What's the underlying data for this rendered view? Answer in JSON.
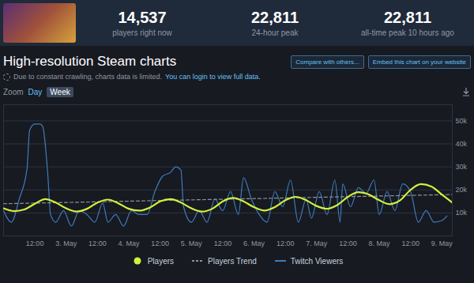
{
  "header": {
    "stats": [
      {
        "value": "14,537",
        "label": "players right now"
      },
      {
        "value": "22,811",
        "label": "24-hour peak"
      },
      {
        "value": "22,811",
        "label": "all-time peak 10 hours ago"
      }
    ]
  },
  "page": {
    "buttons": [
      "Compare with others...",
      "Embed this chart on your website"
    ],
    "notice": "Due to constant crawling, charts data is limited.",
    "notice_link": "You can login to view full data.",
    "zoom_label": "Zoom",
    "zoom_options": [
      "Day",
      "Week"
    ],
    "zoom_selected": "Week"
  },
  "chart_data": {
    "type": "line",
    "title": "High-resolution Steam charts",
    "xlim": [
      0,
      172
    ],
    "xticks": [
      {
        "value": 12,
        "label": "12:00"
      },
      {
        "value": 24,
        "label": "3. May"
      },
      {
        "value": 36,
        "label": "12:00"
      },
      {
        "value": 48,
        "label": "4. May"
      },
      {
        "value": 60,
        "label": "12:00"
      },
      {
        "value": 72,
        "label": "5. May"
      },
      {
        "value": 84,
        "label": "12:00"
      },
      {
        "value": 96,
        "label": "6. May"
      },
      {
        "value": 108,
        "label": "12:00"
      },
      {
        "value": 120,
        "label": "7. May"
      },
      {
        "value": 132,
        "label": "12:00"
      },
      {
        "value": 144,
        "label": "8. May"
      },
      {
        "value": 156,
        "label": "12:00"
      },
      {
        "value": 168,
        "label": "9. May"
      }
    ],
    "ylim": [
      0,
      57000
    ],
    "yticks": [
      {
        "value": 10000,
        "label": "10k"
      },
      {
        "value": 20000,
        "label": "20k"
      },
      {
        "value": 30000,
        "label": "30k"
      },
      {
        "value": 40000,
        "label": "40k"
      },
      {
        "value": 50000,
        "label": "50k"
      }
    ],
    "grid": true,
    "legend": "bottom",
    "series": [
      {
        "name": "Players",
        "color": "#d2f03c",
        "line_style": "solid",
        "x": [
          0,
          4,
          8,
          12,
          16,
          20,
          24,
          28,
          32,
          36,
          40,
          44,
          48,
          52,
          56,
          60,
          64,
          68,
          72,
          76,
          80,
          84,
          88,
          92,
          96,
          100,
          104,
          108,
          112,
          116,
          120,
          124,
          128,
          132,
          136,
          140,
          144,
          148,
          152,
          156,
          160,
          164,
          168,
          172
        ],
        "values": [
          12000,
          10800,
          11500,
          14000,
          16000,
          14500,
          12000,
          10600,
          11800,
          14500,
          15800,
          14200,
          11800,
          11000,
          12300,
          15000,
          16000,
          14500,
          12000,
          10600,
          11800,
          15000,
          16500,
          15000,
          12500,
          11000,
          12500,
          15500,
          17000,
          15500,
          13000,
          11800,
          13500,
          17000,
          19000,
          18000,
          15500,
          13800,
          15500,
          20000,
          22500,
          21500,
          18000,
          14500
        ]
      },
      {
        "name": "Players Trend",
        "color": "#8b929a",
        "line_style": "dashed",
        "x": [
          0,
          172
        ],
        "values": [
          14000,
          18000
        ]
      },
      {
        "name": "Twitch Viewers",
        "color": "#3f7bbd",
        "line_style": "solid",
        "x": [
          0,
          3,
          6,
          9,
          10,
          12,
          14,
          15,
          17,
          18,
          20,
          23,
          26,
          29,
          32,
          35,
          38,
          40,
          43,
          46,
          49,
          52,
          55,
          58,
          61,
          64,
          66,
          68,
          69,
          72,
          75,
          78,
          81,
          84,
          87,
          90,
          92,
          95,
          98,
          101,
          104,
          107,
          110,
          113,
          116,
          118,
          121,
          124,
          127,
          129,
          130,
          133,
          136,
          139,
          142,
          144,
          147,
          150,
          153,
          156,
          159,
          162,
          165,
          168,
          170
        ],
        "values": [
          11000,
          6000,
          16000,
          29300,
          46000,
          48600,
          48600,
          47600,
          26000,
          9300,
          6000,
          11000,
          4300,
          11000,
          9300,
          6000,
          14300,
          6000,
          9300,
          4300,
          11000,
          9300,
          9300,
          19300,
          26000,
          27600,
          30000,
          28600,
          12700,
          6000,
          11000,
          6000,
          16000,
          11000,
          19300,
          9300,
          25300,
          16000,
          9300,
          6000,
          19300,
          12700,
          24300,
          6000,
          16000,
          7700,
          19300,
          9300,
          24300,
          6000,
          22600,
          12700,
          21000,
          18600,
          24300,
          9300,
          19300,
          11000,
          22600,
          19300,
          6000,
          11000,
          6000,
          6700,
          8700
        ]
      }
    ]
  }
}
